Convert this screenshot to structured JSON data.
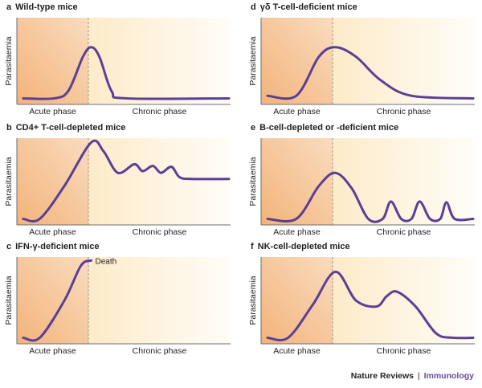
{
  "colors": {
    "curve": "#5b3f95",
    "acute_start": "#f3b37a",
    "acute_end": "#f9dcbf",
    "chronic_start": "#fdebc9",
    "chronic_end": "#fffdf8",
    "axis": "#6d6e71",
    "divider": "#a49a90",
    "journal": "#6a4a9c"
  },
  "common": {
    "ylabel": "Parasitaemia",
    "acute_label": "Acute phase",
    "chronic_label": "Chronic phase"
  },
  "panels": [
    {
      "letter": "a",
      "title": "Wild-type mice",
      "curve_points": [
        [
          0.0,
          0.07
        ],
        [
          0.15,
          0.07
        ],
        [
          0.22,
          0.16
        ],
        [
          0.29,
          0.55
        ],
        [
          0.33,
          0.66
        ],
        [
          0.37,
          0.55
        ],
        [
          0.43,
          0.15
        ],
        [
          0.5,
          0.07
        ],
        [
          1.0,
          0.07
        ]
      ]
    },
    {
      "letter": "b",
      "title": "CD4+ T-cell-depleted mice",
      "curve_points": [
        [
          0.0,
          0.07
        ],
        [
          0.08,
          0.07
        ],
        [
          0.2,
          0.45
        ],
        [
          0.33,
          0.95
        ],
        [
          0.39,
          0.85
        ],
        [
          0.46,
          0.6
        ],
        [
          0.54,
          0.7
        ],
        [
          0.58,
          0.62
        ],
        [
          0.63,
          0.68
        ],
        [
          0.67,
          0.6
        ],
        [
          0.72,
          0.67
        ],
        [
          0.76,
          0.55
        ],
        [
          0.82,
          0.53
        ],
        [
          1.0,
          0.53
        ]
      ]
    },
    {
      "letter": "c",
      "title": "IFN-γ-deficient mice",
      "annotation": "Death",
      "curve_points": [
        [
          0.0,
          0.07
        ],
        [
          0.08,
          0.07
        ],
        [
          0.2,
          0.5
        ],
        [
          0.28,
          0.9
        ],
        [
          0.33,
          0.96
        ]
      ]
    },
    {
      "letter": "d",
      "title": "γδ T-cell-deficient mice",
      "curve_points": [
        [
          0.0,
          0.1
        ],
        [
          0.14,
          0.1
        ],
        [
          0.25,
          0.55
        ],
        [
          0.33,
          0.66
        ],
        [
          0.43,
          0.55
        ],
        [
          0.55,
          0.28
        ],
        [
          0.7,
          0.1
        ],
        [
          1.0,
          0.07
        ]
      ]
    },
    {
      "letter": "e",
      "title": "B-cell-depleted or -deficient mice",
      "curve_points": [
        [
          0.0,
          0.07
        ],
        [
          0.14,
          0.07
        ],
        [
          0.25,
          0.45
        ],
        [
          0.33,
          0.6
        ],
        [
          0.41,
          0.42
        ],
        [
          0.49,
          0.07
        ],
        [
          0.56,
          0.07
        ],
        [
          0.6,
          0.27
        ],
        [
          0.65,
          0.07
        ],
        [
          0.7,
          0.07
        ],
        [
          0.74,
          0.27
        ],
        [
          0.79,
          0.07
        ],
        [
          0.84,
          0.07
        ],
        [
          0.87,
          0.26
        ],
        [
          0.91,
          0.07
        ],
        [
          1.0,
          0.07
        ]
      ]
    },
    {
      "letter": "f",
      "title": "NK-cell-depleted mice",
      "curve_points": [
        [
          0.0,
          0.07
        ],
        [
          0.1,
          0.07
        ],
        [
          0.22,
          0.45
        ],
        [
          0.33,
          0.83
        ],
        [
          0.43,
          0.5
        ],
        [
          0.53,
          0.43
        ],
        [
          0.58,
          0.55
        ],
        [
          0.63,
          0.6
        ],
        [
          0.72,
          0.43
        ],
        [
          0.82,
          0.12
        ],
        [
          0.9,
          0.07
        ],
        [
          1.0,
          0.07
        ]
      ]
    }
  ],
  "footer": {
    "publisher": "Nature Reviews",
    "separator": "|",
    "journal": "Immunology"
  }
}
